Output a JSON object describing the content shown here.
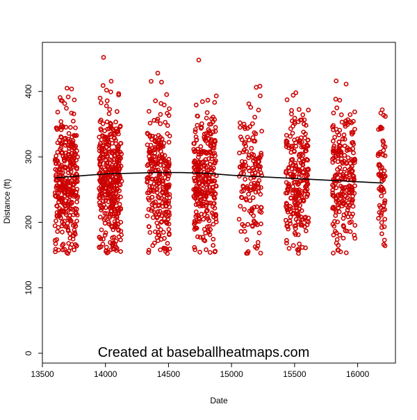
{
  "chart_data": {
    "type": "scatter",
    "title": "",
    "xlabel": "Date",
    "ylabel": "Distance (ft)",
    "xlim": [
      13500,
      16300
    ],
    "ylim": [
      -15,
      475
    ],
    "x_ticks": [
      13500,
      14000,
      14500,
      15000,
      15500,
      16000
    ],
    "y_ticks": [
      0,
      100,
      200,
      300,
      400
    ],
    "x_tick_labels": [
      "13500",
      "14000",
      "14500",
      "15000",
      "15500",
      "16000"
    ],
    "y_tick_labels": [
      "0",
      "100",
      "200",
      "300",
      "400"
    ],
    "grid": false,
    "legend": "none",
    "annotation": "Created at baseballheatmaps.com",
    "point_color": "#cc0000",
    "trend_color": "#000000",
    "season_clusters": [
      {
        "x_start": 13600,
        "x_end": 13780,
        "n_points": 320,
        "y_min": 152,
        "y_max": 405
      },
      {
        "x_start": 13950,
        "x_end": 14130,
        "n_points": 380,
        "y_min": 153,
        "y_max": 452
      },
      {
        "x_start": 14330,
        "x_end": 14510,
        "n_points": 260,
        "y_min": 150,
        "y_max": 430
      },
      {
        "x_start": 14700,
        "x_end": 14880,
        "n_points": 300,
        "y_min": 152,
        "y_max": 448
      },
      {
        "x_start": 15060,
        "x_end": 15240,
        "n_points": 150,
        "y_min": 150,
        "y_max": 410
      },
      {
        "x_start": 15430,
        "x_end": 15610,
        "n_points": 240,
        "y_min": 152,
        "y_max": 398
      },
      {
        "x_start": 15800,
        "x_end": 15980,
        "n_points": 230,
        "y_min": 150,
        "y_max": 415
      },
      {
        "x_start": 16160,
        "x_end": 16220,
        "n_points": 70,
        "y_min": 158,
        "y_max": 372
      }
    ],
    "highlight_points": [
      {
        "x": 13985,
        "y": 452
      },
      {
        "x": 14740,
        "y": 448
      },
      {
        "x": 14415,
        "y": 428
      },
      {
        "x": 13695,
        "y": 405
      },
      {
        "x": 15225,
        "y": 408
      },
      {
        "x": 15830,
        "y": 416
      },
      {
        "x": 15510,
        "y": 398
      },
      {
        "x": 16195,
        "y": 372
      }
    ],
    "trend_line": {
      "x": [
        13600,
        13800,
        14000,
        14200,
        14400,
        14600,
        14800,
        15000,
        15200,
        15400,
        15600,
        15800,
        16000,
        16200
      ],
      "y": [
        268,
        271,
        274,
        275,
        276,
        276,
        275,
        272,
        270,
        268,
        266,
        264,
        262,
        260
      ]
    }
  }
}
